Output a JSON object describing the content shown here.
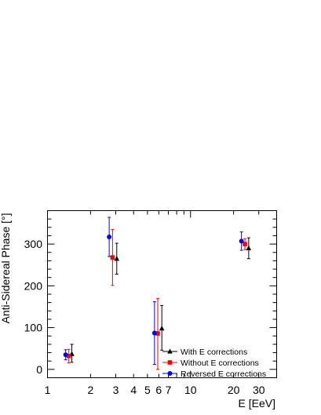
{
  "chart_data": {
    "type": "scatter",
    "title": "",
    "xlabel": "E [EeV]",
    "ylabel": "Anti-Sidereal Phase [°]",
    "x_scale": "log",
    "xlim": [
      1,
      40
    ],
    "ylim": [
      -20,
      380
    ],
    "x_tick_labels": [
      {
        "value": 1,
        "label": "1"
      },
      {
        "value": 2,
        "label": "2"
      },
      {
        "value": 3,
        "label": "3"
      },
      {
        "value": 4,
        "label": "4"
      },
      {
        "value": 5,
        "label": "5"
      },
      {
        "value": 6,
        "label": "6"
      },
      {
        "value": 7,
        "label": "7"
      },
      {
        "value": 10,
        "label": "10"
      },
      {
        "value": 20,
        "label": "20"
      },
      {
        "value": 30,
        "label": "30"
      }
    ],
    "y_tick_labels": [
      {
        "value": 0,
        "label": "0"
      },
      {
        "value": 100,
        "label": "100"
      },
      {
        "value": 200,
        "label": "200"
      },
      {
        "value": 300,
        "label": "300"
      }
    ],
    "grid": false,
    "legend_position": "bottom-right",
    "series": [
      {
        "name": "With E corrections",
        "marker": "triangle",
        "color": "#000000",
        "points": [
          {
            "x": 1.48,
            "y": 37,
            "err_low": 20,
            "err_high": 23
          },
          {
            "x": 3.05,
            "y": 265,
            "err_low": 37,
            "err_high": 37
          },
          {
            "x": 6.3,
            "y": 98,
            "err_low": 52,
            "err_high": 55
          },
          {
            "x": 25.5,
            "y": 290,
            "err_low": 25,
            "err_high": 25
          }
        ]
      },
      {
        "name": "Without E corrections",
        "marker": "square",
        "color": "#ff0000",
        "points": [
          {
            "x": 1.41,
            "y": 32,
            "err_low": 16,
            "err_high": 16
          },
          {
            "x": 2.85,
            "y": 268,
            "err_low": 67,
            "err_high": 67
          },
          {
            "x": 5.9,
            "y": 86,
            "err_low": 86,
            "err_high": 84
          },
          {
            "x": 24.0,
            "y": 300,
            "err_low": 13,
            "err_high": 13
          }
        ]
      },
      {
        "name": "Reversed E corrections",
        "marker": "circle",
        "color": "#0000ff",
        "points": [
          {
            "x": 1.34,
            "y": 35,
            "err_low": 12,
            "err_high": 12
          },
          {
            "x": 2.7,
            "y": 317,
            "err_low": 47,
            "err_high": 47
          },
          {
            "x": 5.6,
            "y": 87,
            "err_low": 75,
            "err_high": 75
          },
          {
            "x": 22.7,
            "y": 307,
            "err_low": 22,
            "err_high": 22
          }
        ]
      }
    ]
  },
  "colors": {
    "axis": "#000000",
    "background": "#ffffff"
  }
}
